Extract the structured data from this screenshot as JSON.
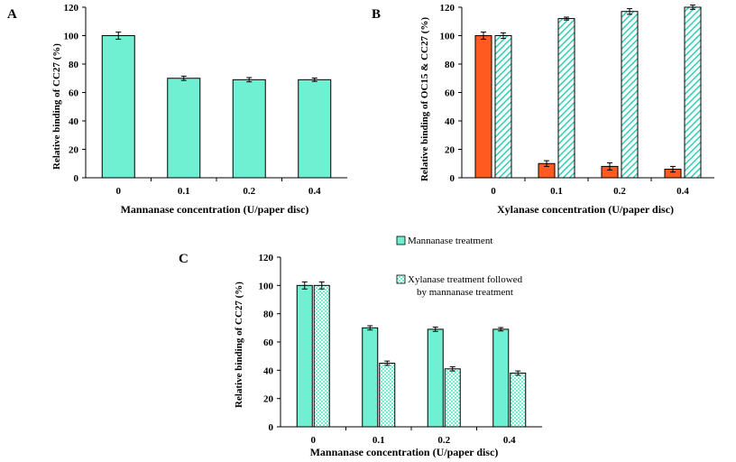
{
  "colors": {
    "teal": "#6FF0D2",
    "orange": "#FF5A1F",
    "hatch": "#2FCFB3",
    "axis": "#000000"
  },
  "chart_data": [
    {
      "id": "A",
      "panel_label": "A",
      "type": "bar",
      "ylabel": "Relative binding of CC27 (%)",
      "xlabel": "Mannanase concentration (U/paper disc)",
      "categories": [
        "0",
        "0.1",
        "0.2",
        "0.4"
      ],
      "ylim": [
        0,
        120
      ],
      "yticks": [
        "0",
        "20",
        "40",
        "60",
        "80",
        "100",
        "120"
      ],
      "series": [
        {
          "name": "Mannanase treatment",
          "style": "solid-teal",
          "values": [
            100,
            70,
            69,
            69
          ],
          "errors": [
            2.5,
            1.5,
            1.5,
            1.2
          ]
        }
      ]
    },
    {
      "id": "B",
      "panel_label": "B",
      "type": "bar",
      "ylabel": "Relative binding of OC15 & CC27 (%)",
      "xlabel": "Xylanase concentration (U/paper disc)",
      "categories": [
        "0",
        "0.1",
        "0.2",
        "0.4"
      ],
      "ylim": [
        0,
        120
      ],
      "yticks": [
        "0",
        "20",
        "40",
        "60",
        "80",
        "100",
        "120"
      ],
      "series": [
        {
          "name": "OC15",
          "style": "solid-orange",
          "values": [
            100,
            10,
            8,
            6
          ],
          "errors": [
            2.5,
            2,
            2.5,
            2
          ]
        },
        {
          "name": "CC27",
          "style": "hatch-diag",
          "values": [
            100,
            112,
            117,
            120
          ],
          "errors": [
            2,
            1,
            2,
            1.5
          ]
        }
      ]
    },
    {
      "id": "C",
      "panel_label": "C",
      "type": "bar",
      "ylabel": "Relative binding of CC27 (%)",
      "xlabel": "Mannanase concentration (U/paper disc)",
      "categories": [
        "0",
        "0.1",
        "0.2",
        "0.4"
      ],
      "ylim": [
        0,
        120
      ],
      "yticks": [
        "0",
        "20",
        "40",
        "60",
        "80",
        "100",
        "120"
      ],
      "legend": [
        "Mannanase treatment",
        "Xylanase treatment followed",
        "by mannanase treatment"
      ],
      "series": [
        {
          "name": "Mannanase treatment",
          "style": "solid-teal",
          "values": [
            100,
            70,
            69,
            69
          ],
          "errors": [
            2.5,
            1.5,
            1.5,
            1.2
          ]
        },
        {
          "name": "Xylanase treatment followed by mannanase treatment",
          "style": "hatch-check",
          "values": [
            100,
            45,
            41,
            38
          ],
          "errors": [
            2.5,
            1.5,
            1.5,
            1.5
          ]
        }
      ]
    }
  ]
}
